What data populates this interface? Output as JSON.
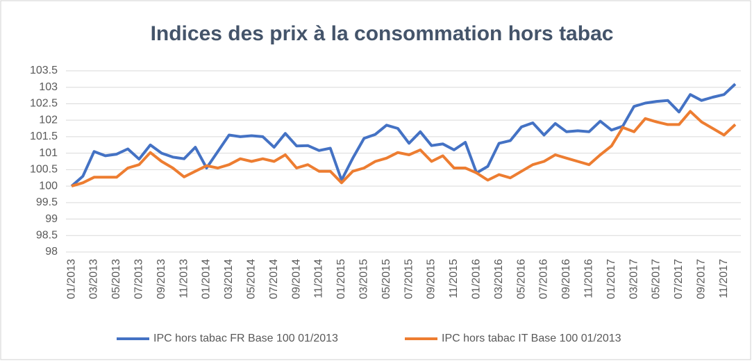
{
  "chart_data": {
    "type": "line",
    "title": "Indices des prix à la consommation hors tabac",
    "categories": [
      "01/2013",
      null,
      "03/2013",
      null,
      "05/2013",
      null,
      "07/2013",
      null,
      "09/2013",
      null,
      "11/2013",
      null,
      "01/2014",
      null,
      "03/2014",
      null,
      "05/2014",
      null,
      "07/2014",
      null,
      "09/2014",
      null,
      "11/2014",
      null,
      "01/2015",
      null,
      "03/2015",
      null,
      "05/2015",
      null,
      "07/2015",
      null,
      "09/2015",
      null,
      "11/2015",
      null,
      "01/2016",
      null,
      "03/2016",
      null,
      "05/2016",
      null,
      "07/2016",
      null,
      "09/2016",
      null,
      "11/2016",
      null,
      "01/2017",
      null,
      "03/2017",
      null,
      "05/2017",
      null,
      "07/2017",
      null,
      "09/2017",
      null,
      "11/2017",
      null
    ],
    "series": [
      {
        "name": "IPC hors tabac FR Base 100 01/2013",
        "color": "#4472c4",
        "values": [
          100.0,
          100.3,
          101.05,
          100.92,
          100.97,
          101.13,
          100.82,
          101.25,
          101.0,
          100.88,
          100.83,
          101.18,
          100.55,
          101.05,
          101.55,
          101.5,
          101.53,
          101.5,
          101.18,
          101.6,
          101.22,
          101.23,
          101.08,
          101.15,
          100.18,
          100.85,
          101.45,
          101.57,
          101.85,
          101.75,
          101.3,
          101.65,
          101.23,
          101.28,
          101.1,
          101.33,
          100.4,
          100.6,
          101.3,
          101.38,
          101.8,
          101.92,
          101.55,
          101.9,
          101.65,
          101.68,
          101.65,
          101.97,
          101.7,
          101.82,
          102.42,
          102.52,
          102.57,
          102.6,
          102.25,
          102.78,
          102.6,
          102.7,
          102.78,
          103.1
        ]
      },
      {
        "name": "IPC hors tabac IT Base 100 01/2013",
        "color": "#ed7d31",
        "values": [
          100.0,
          100.1,
          100.27,
          100.27,
          100.27,
          100.55,
          100.65,
          101.02,
          100.75,
          100.55,
          100.28,
          100.45,
          100.62,
          100.55,
          100.65,
          100.83,
          100.75,
          100.83,
          100.75,
          100.95,
          100.55,
          100.65,
          100.45,
          100.45,
          100.1,
          100.45,
          100.55,
          100.75,
          100.85,
          101.02,
          100.95,
          101.1,
          100.75,
          100.92,
          100.55,
          100.55,
          100.4,
          100.18,
          100.35,
          100.25,
          100.45,
          100.65,
          100.75,
          100.95,
          100.85,
          100.75,
          100.65,
          100.95,
          101.22,
          101.78,
          101.65,
          102.05,
          101.95,
          101.87,
          101.87,
          102.27,
          101.95,
          101.75,
          101.55,
          101.87
        ]
      }
    ],
    "ylim": [
      98,
      103.5
    ],
    "yticks": [
      98,
      98.5,
      99,
      99.5,
      100,
      100.5,
      101,
      101.5,
      102,
      102.5,
      103,
      103.5
    ],
    "grid": true,
    "legend": "bottom"
  }
}
